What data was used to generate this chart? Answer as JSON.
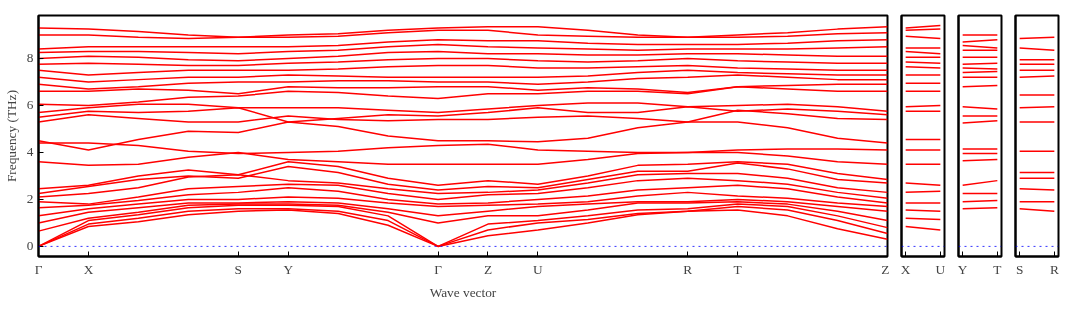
{
  "chart_data": [
    {
      "type": "line",
      "xlabel": "Wave vector",
      "ylabel": "Frequency (THz)",
      "categories": [
        "Γ",
        "X",
        null,
        null,
        "S",
        "Y",
        null,
        null,
        "Γ",
        "Z",
        "U",
        null,
        null,
        "R",
        "T",
        null,
        null,
        "Z"
      ],
      "ylim": [
        -0.43,
        9.83
      ],
      "yticks": [
        0,
        2,
        4,
        6,
        8
      ],
      "grid": false,
      "line_style": "solid",
      "ref_lines": [
        {
          "axis": "y",
          "value": 0,
          "color": "#0000ff",
          "line_style": "dotted"
        }
      ],
      "series": [
        {
          "color": "#ff0000",
          "values": [
            0,
            0.85,
            1.05,
            1.35,
            1.5,
            1.55,
            1.4,
            0.9,
            0,
            0.45,
            0.7,
            1.0,
            1.35,
            1.5,
            1.55,
            1.3,
            0.75,
            0.3
          ]
        },
        {
          "color": "#ff0000",
          "values": [
            0,
            0.95,
            1.2,
            1.5,
            1.6,
            1.6,
            1.5,
            1.1,
            0,
            0.7,
            1.0,
            1.15,
            1.4,
            1.5,
            1.7,
            1.55,
            1.1,
            0.55
          ]
        },
        {
          "color": "#ff0000",
          "values": [
            0,
            1.1,
            1.35,
            1.65,
            1.75,
            1.75,
            1.7,
            1.3,
            0,
            0.95,
            1.1,
            1.3,
            1.55,
            1.6,
            1.8,
            1.7,
            1.3,
            0.8
          ]
        },
        {
          "color": "#ff0000",
          "values": [
            0.65,
            1.2,
            1.45,
            1.75,
            1.8,
            1.8,
            1.75,
            1.45,
            1.0,
            1.3,
            1.3,
            1.55,
            1.85,
            1.85,
            1.9,
            1.8,
            1.5,
            1.1
          ]
        },
        {
          "color": "#ff0000",
          "values": [
            1.0,
            1.45,
            1.65,
            1.85,
            1.85,
            1.9,
            1.85,
            1.6,
            1.3,
            1.5,
            1.7,
            1.8,
            1.9,
            1.9,
            2.0,
            1.9,
            1.7,
            1.5
          ]
        },
        {
          "color": "#ff0000",
          "values": [
            1.3,
            1.6,
            1.8,
            2.0,
            2.0,
            2.1,
            2.05,
            1.85,
            1.7,
            1.75,
            1.8,
            1.9,
            2.15,
            2.3,
            2.15,
            2.05,
            1.85,
            1.7
          ]
        },
        {
          "color": "#ff0000",
          "values": [
            1.65,
            1.75,
            1.95,
            2.2,
            2.3,
            2.5,
            2.35,
            2.0,
            1.8,
            1.85,
            2.0,
            2.15,
            2.4,
            2.5,
            2.6,
            2.45,
            2.1,
            1.85
          ]
        },
        {
          "color": "#ff0000",
          "values": [
            1.9,
            1.8,
            2.1,
            2.45,
            2.55,
            2.65,
            2.6,
            2.25,
            2.0,
            2.2,
            2.25,
            2.5,
            2.8,
            2.9,
            2.8,
            2.65,
            2.3,
            2.05
          ]
        },
        {
          "color": "#ff0000",
          "values": [
            2.1,
            2.25,
            2.5,
            2.95,
            3.05,
            2.8,
            2.7,
            2.45,
            2.25,
            2.3,
            2.4,
            2.7,
            3.05,
            3.1,
            3.1,
            2.9,
            2.5,
            2.3
          ]
        },
        {
          "color": "#ff0000",
          "values": [
            2.25,
            2.55,
            2.85,
            3.0,
            2.9,
            3.4,
            3.15,
            2.65,
            2.4,
            2.55,
            2.5,
            2.85,
            3.2,
            3.2,
            3.55,
            3.3,
            2.85,
            2.7
          ]
        },
        {
          "color": "#ff0000",
          "values": [
            2.45,
            2.6,
            3.0,
            3.25,
            3.05,
            3.6,
            3.4,
            2.9,
            2.6,
            2.8,
            2.65,
            3.0,
            3.45,
            3.5,
            3.6,
            3.5,
            3.1,
            2.85
          ]
        },
        {
          "color": "#ff0000",
          "values": [
            3.6,
            3.45,
            3.5,
            3.8,
            4.0,
            3.7,
            3.6,
            3.5,
            3.5,
            3.5,
            3.5,
            3.7,
            3.95,
            4.0,
            4.0,
            3.85,
            3.6,
            3.5
          ]
        },
        {
          "color": "#ff0000",
          "values": [
            4.4,
            4.4,
            4.3,
            4.05,
            3.95,
            4.0,
            4.05,
            4.2,
            4.3,
            4.35,
            4.1,
            4.05,
            4.0,
            4.0,
            4.1,
            4.15,
            4.15,
            4.1
          ]
        },
        {
          "color": "#ff0000",
          "values": [
            4.5,
            4.1,
            4.55,
            4.9,
            4.85,
            5.3,
            5.1,
            4.7,
            4.5,
            4.5,
            4.45,
            4.6,
            5.05,
            5.3,
            5.3,
            5.05,
            4.6,
            4.4
          ]
        },
        {
          "color": "#ff0000",
          "values": [
            5.3,
            5.6,
            5.45,
            5.3,
            5.3,
            5.55,
            5.4,
            5.35,
            5.4,
            5.4,
            5.5,
            5.55,
            5.45,
            5.3,
            5.8,
            5.65,
            5.45,
            5.4
          ]
        },
        {
          "color": "#ff0000",
          "values": [
            5.5,
            5.75,
            5.7,
            5.75,
            5.9,
            5.3,
            5.45,
            5.6,
            5.55,
            5.7,
            5.9,
            5.7,
            5.7,
            5.95,
            5.75,
            5.85,
            5.75,
            5.6
          ]
        },
        {
          "color": "#ff0000",
          "values": [
            5.7,
            5.9,
            6.05,
            6.05,
            5.9,
            5.9,
            5.9,
            5.8,
            5.7,
            5.85,
            6.0,
            6.1,
            6.1,
            5.95,
            6.0,
            6.05,
            5.95,
            5.75
          ]
        },
        {
          "color": "#ff0000",
          "values": [
            6.05,
            6.0,
            6.15,
            6.35,
            6.4,
            6.6,
            6.55,
            6.4,
            6.3,
            6.5,
            6.5,
            6.6,
            6.6,
            6.5,
            6.8,
            6.7,
            6.6,
            6.6
          ]
        },
        {
          "color": "#ff0000",
          "values": [
            6.6,
            6.6,
            6.7,
            6.65,
            6.5,
            6.8,
            6.75,
            6.75,
            6.8,
            6.8,
            6.65,
            6.75,
            6.7,
            6.55,
            6.8,
            6.85,
            6.9,
            6.9
          ]
        },
        {
          "color": "#ff0000",
          "values": [
            6.9,
            6.7,
            6.8,
            6.95,
            7.0,
            7.0,
            7.05,
            7.05,
            7.0,
            7.0,
            6.9,
            7.0,
            7.15,
            7.2,
            7.3,
            7.2,
            7.1,
            7.1
          ]
        },
        {
          "color": "#ff0000",
          "values": [
            7.2,
            7.0,
            7.1,
            7.2,
            7.2,
            7.3,
            7.25,
            7.2,
            7.2,
            7.2,
            7.2,
            7.25,
            7.4,
            7.5,
            7.4,
            7.35,
            7.3,
            7.3
          ]
        },
        {
          "color": "#ff0000",
          "values": [
            7.5,
            7.3,
            7.4,
            7.5,
            7.5,
            7.5,
            7.55,
            7.65,
            7.7,
            7.7,
            7.6,
            7.6,
            7.65,
            7.7,
            7.6,
            7.55,
            7.5,
            7.5
          ]
        },
        {
          "color": "#ff0000",
          "values": [
            7.75,
            7.8,
            7.75,
            7.7,
            7.7,
            7.8,
            7.85,
            7.95,
            8.0,
            8.0,
            7.9,
            7.85,
            7.9,
            8.0,
            7.9,
            7.85,
            7.8,
            7.8
          ]
        },
        {
          "color": "#ff0000",
          "values": [
            8.0,
            8.1,
            8.05,
            7.95,
            7.9,
            8.0,
            8.1,
            8.25,
            8.3,
            8.2,
            8.2,
            8.15,
            8.15,
            8.2,
            8.2,
            8.15,
            8.1,
            8.1
          ]
        },
        {
          "color": "#ff0000",
          "values": [
            8.25,
            8.3,
            8.3,
            8.25,
            8.2,
            8.3,
            8.35,
            8.5,
            8.6,
            8.5,
            8.45,
            8.4,
            8.35,
            8.4,
            8.4,
            8.4,
            8.45,
            8.5
          ]
        },
        {
          "color": "#ff0000",
          "values": [
            8.4,
            8.5,
            8.5,
            8.5,
            8.5,
            8.5,
            8.55,
            8.7,
            8.8,
            8.75,
            8.75,
            8.65,
            8.6,
            8.6,
            8.6,
            8.65,
            8.75,
            8.8
          ]
        },
        {
          "color": "#ff0000",
          "values": [
            9.0,
            9.0,
            8.9,
            8.85,
            8.9,
            8.9,
            8.95,
            9.1,
            9.2,
            9.2,
            9.0,
            8.95,
            8.9,
            8.9,
            8.9,
            8.95,
            9.05,
            9.1
          ]
        },
        {
          "color": "#ff0000",
          "values": [
            9.3,
            9.25,
            9.15,
            9.0,
            8.9,
            9.0,
            9.05,
            9.2,
            9.3,
            9.35,
            9.35,
            9.2,
            9.0,
            8.9,
            9.0,
            9.1,
            9.25,
            9.35
          ]
        }
      ]
    },
    {
      "type": "line",
      "categories": [
        "X",
        "U"
      ],
      "ylim": [
        -0.43,
        9.83
      ],
      "yticks": [
        0,
        2,
        4,
        6,
        8
      ],
      "tick_labels": "x",
      "grid": false,
      "ref_lines": [
        {
          "axis": "y",
          "value": 0,
          "color": "#0000ff",
          "line_style": "dotted"
        }
      ],
      "series": [
        {
          "color": "#ff0000",
          "values": [
            9.3,
            9.4
          ]
        },
        {
          "color": "#ff0000",
          "values": [
            9.2,
            9.25
          ]
        },
        {
          "color": "#ff0000",
          "values": [
            8.95,
            8.85
          ]
        },
        {
          "color": "#ff0000",
          "values": [
            8.45,
            8.45
          ]
        },
        {
          "color": "#ff0000",
          "values": [
            8.3,
            8.2
          ]
        },
        {
          "color": "#ff0000",
          "values": [
            8.05,
            8.05
          ]
        },
        {
          "color": "#ff0000",
          "values": [
            7.85,
            7.8
          ]
        },
        {
          "color": "#ff0000",
          "values": [
            7.65,
            7.6
          ]
        },
        {
          "color": "#ff0000",
          "values": [
            7.3,
            7.3
          ]
        },
        {
          "color": "#ff0000",
          "values": [
            6.95,
            6.95
          ]
        },
        {
          "color": "#ff0000",
          "values": [
            6.6,
            6.6
          ]
        },
        {
          "color": "#ff0000",
          "values": [
            5.95,
            6.0
          ]
        },
        {
          "color": "#ff0000",
          "values": [
            5.75,
            5.75
          ]
        },
        {
          "color": "#ff0000",
          "values": [
            4.55,
            4.55
          ]
        },
        {
          "color": "#ff0000",
          "values": [
            4.1,
            4.1
          ]
        },
        {
          "color": "#ff0000",
          "values": [
            3.5,
            3.5
          ]
        },
        {
          "color": "#ff0000",
          "values": [
            2.7,
            2.6
          ]
        },
        {
          "color": "#ff0000",
          "values": [
            2.3,
            2.35
          ]
        },
        {
          "color": "#ff0000",
          "values": [
            1.85,
            1.85
          ]
        },
        {
          "color": "#ff0000",
          "values": [
            1.55,
            1.5
          ]
        },
        {
          "color": "#ff0000",
          "values": [
            1.2,
            1.15
          ]
        },
        {
          "color": "#ff0000",
          "values": [
            0.85,
            0.7
          ]
        }
      ]
    },
    {
      "type": "line",
      "categories": [
        "Y",
        "T"
      ],
      "ylim": [
        -0.43,
        9.83
      ],
      "yticks": [
        0,
        2,
        4,
        6,
        8
      ],
      "tick_labels": "x",
      "grid": false,
      "ref_lines": [
        {
          "axis": "y",
          "value": 0,
          "color": "#0000ff",
          "line_style": "dotted"
        }
      ],
      "series": [
        {
          "color": "#ff0000",
          "values": [
            9.0,
            9.0
          ]
        },
        {
          "color": "#ff0000",
          "values": [
            8.7,
            8.8
          ]
        },
        {
          "color": "#ff0000",
          "values": [
            8.55,
            8.45
          ]
        },
        {
          "color": "#ff0000",
          "values": [
            8.35,
            8.35
          ]
        },
        {
          "color": "#ff0000",
          "values": [
            8.05,
            8.05
          ]
        },
        {
          "color": "#ff0000",
          "values": [
            7.75,
            7.8
          ]
        },
        {
          "color": "#ff0000",
          "values": [
            7.6,
            7.55
          ]
        },
        {
          "color": "#ff0000",
          "values": [
            7.4,
            7.45
          ]
        },
        {
          "color": "#ff0000",
          "values": [
            7.2,
            7.2
          ]
        },
        {
          "color": "#ff0000",
          "values": [
            6.8,
            6.85
          ]
        },
        {
          "color": "#ff0000",
          "values": [
            5.95,
            5.85
          ]
        },
        {
          "color": "#ff0000",
          "values": [
            5.55,
            5.55
          ]
        },
        {
          "color": "#ff0000",
          "values": [
            5.25,
            5.35
          ]
        },
        {
          "color": "#ff0000",
          "values": [
            4.15,
            4.15
          ]
        },
        {
          "color": "#ff0000",
          "values": [
            3.95,
            3.95
          ]
        },
        {
          "color": "#ff0000",
          "values": [
            3.65,
            3.7
          ]
        },
        {
          "color": "#ff0000",
          "values": [
            2.6,
            2.8
          ]
        },
        {
          "color": "#ff0000",
          "values": [
            2.25,
            2.25
          ]
        },
        {
          "color": "#ff0000",
          "values": [
            1.9,
            1.95
          ]
        },
        {
          "color": "#ff0000",
          "values": [
            1.6,
            1.65
          ]
        }
      ]
    },
    {
      "type": "line",
      "categories": [
        "S",
        "R"
      ],
      "ylim": [
        -0.43,
        9.83
      ],
      "yticks": [
        0,
        2,
        4,
        6,
        8
      ],
      "tick_labels": "x",
      "grid": false,
      "ref_lines": [
        {
          "axis": "y",
          "value": 0,
          "color": "#0000ff",
          "line_style": "dotted"
        }
      ],
      "series": [
        {
          "color": "#ff0000",
          "values": [
            8.85,
            8.9
          ]
        },
        {
          "color": "#ff0000",
          "values": [
            8.45,
            8.35
          ]
        },
        {
          "color": "#ff0000",
          "values": [
            7.95,
            7.95
          ]
        },
        {
          "color": "#ff0000",
          "values": [
            7.75,
            7.75
          ]
        },
        {
          "color": "#ff0000",
          "values": [
            7.5,
            7.5
          ]
        },
        {
          "color": "#ff0000",
          "values": [
            7.2,
            7.25
          ]
        },
        {
          "color": "#ff0000",
          "values": [
            6.45,
            6.45
          ]
        },
        {
          "color": "#ff0000",
          "values": [
            5.9,
            5.95
          ]
        },
        {
          "color": "#ff0000",
          "values": [
            5.3,
            5.3
          ]
        },
        {
          "color": "#ff0000",
          "values": [
            4.05,
            4.05
          ]
        },
        {
          "color": "#ff0000",
          "values": [
            3.15,
            3.15
          ]
        },
        {
          "color": "#ff0000",
          "values": [
            2.9,
            2.9
          ]
        },
        {
          "color": "#ff0000",
          "values": [
            2.45,
            2.4
          ]
        },
        {
          "color": "#ff0000",
          "values": [
            1.9,
            1.9
          ]
        },
        {
          "color": "#ff0000",
          "values": [
            1.6,
            1.5
          ]
        }
      ]
    }
  ]
}
